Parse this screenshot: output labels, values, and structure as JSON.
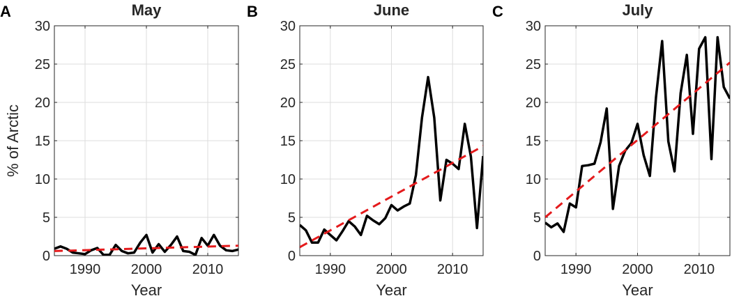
{
  "chart_data": [
    {
      "type": "line",
      "panel_label": "A",
      "title": "May",
      "xlabel": "Year",
      "ylabel": "% of Arctic",
      "xlim": [
        1985,
        2015
      ],
      "ylim": [
        0,
        30
      ],
      "xticks": [
        1990,
        2000,
        2010
      ],
      "yticks": [
        0,
        5,
        10,
        15,
        20,
        25,
        30
      ],
      "grid": true,
      "series": [
        {
          "style": "solid",
          "color": "#000000",
          "x": [
            1985,
            1986,
            1987,
            1988,
            1989,
            1990,
            1991,
            1992,
            1993,
            1994,
            1995,
            1996,
            1997,
            1998,
            1999,
            2000,
            2001,
            2002,
            2003,
            2004,
            2005,
            2006,
            2007,
            2008,
            2009,
            2010,
            2011,
            2012,
            2013,
            2014,
            2015
          ],
          "y": [
            0.9,
            1.2,
            0.9,
            0.4,
            0.3,
            0.2,
            0.7,
            1.0,
            0.1,
            0.1,
            1.4,
            0.6,
            0.3,
            0.4,
            1.7,
            2.7,
            0.4,
            1.5,
            0.5,
            1.4,
            2.5,
            0.6,
            0.5,
            0.1,
            2.3,
            1.3,
            2.7,
            1.3,
            0.7,
            0.6,
            0.8
          ]
        },
        {
          "style": "dashed",
          "color": "#e41a1c",
          "x": [
            1985,
            2015
          ],
          "y": [
            0.6,
            1.3
          ]
        }
      ]
    },
    {
      "type": "line",
      "panel_label": "B",
      "title": "June",
      "xlabel": "Year",
      "ylabel": "",
      "xlim": [
        1985,
        2015
      ],
      "ylim": [
        0,
        30
      ],
      "xticks": [
        1990,
        2000,
        2010
      ],
      "yticks": [
        0,
        5,
        10,
        15,
        20,
        25,
        30
      ],
      "grid": true,
      "series": [
        {
          "style": "solid",
          "color": "#000000",
          "x": [
            1985,
            1986,
            1987,
            1988,
            1989,
            1990,
            1991,
            1992,
            1993,
            1994,
            1995,
            1996,
            1997,
            1998,
            1999,
            2000,
            2001,
            2002,
            2003,
            2004,
            2005,
            2006,
            2007,
            2008,
            2009,
            2010,
            2011,
            2012,
            2013,
            2014,
            2015
          ],
          "y": [
            4.0,
            3.3,
            1.7,
            1.7,
            3.4,
            2.7,
            2.0,
            3.2,
            4.5,
            3.8,
            2.7,
            5.2,
            4.6,
            4.1,
            4.9,
            6.6,
            5.9,
            6.4,
            6.8,
            10.5,
            18.0,
            23.3,
            18.0,
            7.2,
            12.5,
            12.0,
            11.3,
            17.2,
            12.9,
            3.6,
            13.0
          ]
        },
        {
          "style": "dashed",
          "color": "#e41a1c",
          "x": [
            1985,
            2015
          ],
          "y": [
            1.1,
            14.3
          ]
        }
      ]
    },
    {
      "type": "line",
      "panel_label": "C",
      "title": "July",
      "xlabel": "Year",
      "ylabel": "",
      "xlim": [
        1985,
        2015
      ],
      "ylim": [
        0,
        30
      ],
      "xticks": [
        1990,
        2000,
        2010
      ],
      "yticks": [
        0,
        5,
        10,
        15,
        20,
        25,
        30
      ],
      "grid": true,
      "series": [
        {
          "style": "solid",
          "color": "#000000",
          "x": [
            1985,
            1986,
            1987,
            1988,
            1989,
            1990,
            1991,
            1992,
            1993,
            1994,
            1995,
            1996,
            1997,
            1998,
            1999,
            2000,
            2001,
            2002,
            2003,
            2004,
            2005,
            2006,
            2007,
            2008,
            2009,
            2010,
            2011,
            2012,
            2013,
            2014,
            2015
          ],
          "y": [
            4.3,
            3.7,
            4.2,
            3.1,
            6.8,
            6.3,
            11.7,
            11.8,
            12.0,
            14.8,
            19.2,
            6.1,
            11.7,
            13.7,
            14.7,
            17.2,
            13.1,
            10.4,
            20.7,
            28.0,
            14.9,
            11.0,
            21.2,
            26.2,
            15.9,
            27.0,
            28.5,
            12.6,
            28.5,
            22.0,
            20.5
          ]
        },
        {
          "style": "dashed",
          "color": "#e41a1c",
          "x": [
            1985,
            2015
          ],
          "y": [
            5.0,
            25.2
          ]
        }
      ]
    }
  ]
}
